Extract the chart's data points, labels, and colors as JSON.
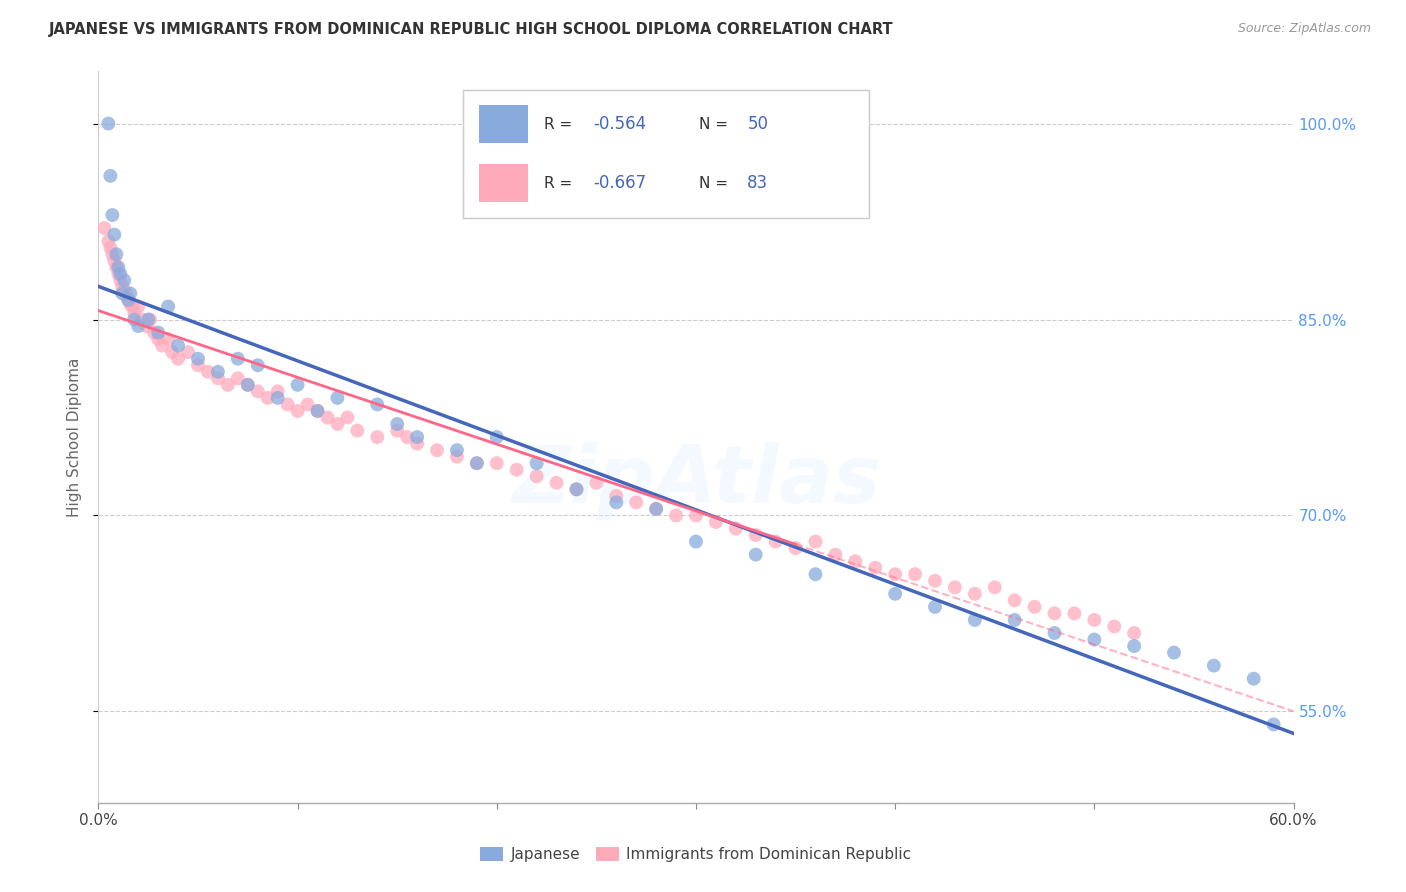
{
  "title": "JAPANESE VS IMMIGRANTS FROM DOMINICAN REPUBLIC HIGH SCHOOL DIPLOMA CORRELATION CHART",
  "source": "Source: ZipAtlas.com",
  "ylabel": "High School Diploma",
  "xlim": [
    0.0,
    60.0
  ],
  "ylim": [
    48.0,
    104.0
  ],
  "xticks": [
    0.0,
    10.0,
    20.0,
    30.0,
    40.0,
    50.0,
    60.0
  ],
  "ytick_positions": [
    55.0,
    70.0,
    85.0,
    100.0
  ],
  "ytick_labels": [
    "55.0%",
    "70.0%",
    "85.0%",
    "100.0%"
  ],
  "blue_color": "#88AADD",
  "pink_color": "#FFAABB",
  "blue_line_color": "#4466BB",
  "pink_line_color": "#FF6688",
  "blue_r": "-0.564",
  "blue_n": "50",
  "pink_r": "-0.667",
  "pink_n": "83",
  "japanese_x": [
    0.5,
    0.6,
    0.7,
    0.8,
    0.9,
    1.0,
    1.1,
    1.2,
    1.3,
    1.5,
    1.6,
    1.8,
    2.0,
    2.5,
    3.0,
    3.5,
    4.0,
    5.0,
    6.0,
    7.0,
    7.5,
    8.0,
    9.0,
    10.0,
    11.0,
    12.0,
    14.0,
    15.0,
    16.0,
    18.0,
    19.0,
    20.0,
    22.0,
    24.0,
    26.0,
    28.0,
    30.0,
    33.0,
    36.0,
    40.0,
    42.0,
    44.0,
    46.0,
    48.0,
    50.0,
    52.0,
    54.0,
    56.0,
    58.0,
    59.0
  ],
  "japanese_y": [
    100.0,
    96.0,
    93.0,
    91.5,
    90.0,
    89.0,
    88.5,
    87.0,
    88.0,
    86.5,
    87.0,
    85.0,
    84.5,
    85.0,
    84.0,
    86.0,
    83.0,
    82.0,
    81.0,
    82.0,
    80.0,
    81.5,
    79.0,
    80.0,
    78.0,
    79.0,
    78.5,
    77.0,
    76.0,
    75.0,
    74.0,
    76.0,
    74.0,
    72.0,
    71.0,
    70.5,
    68.0,
    67.0,
    65.5,
    64.0,
    63.0,
    62.0,
    62.0,
    61.0,
    60.5,
    60.0,
    59.5,
    58.5,
    57.5,
    54.0
  ],
  "dominican_x": [
    0.3,
    0.5,
    0.6,
    0.7,
    0.8,
    0.9,
    1.0,
    1.1,
    1.2,
    1.3,
    1.4,
    1.5,
    1.6,
    1.7,
    1.8,
    2.0,
    2.2,
    2.4,
    2.6,
    2.8,
    3.0,
    3.2,
    3.5,
    3.7,
    4.0,
    4.5,
    5.0,
    5.5,
    6.0,
    6.5,
    7.0,
    7.5,
    8.0,
    8.5,
    9.0,
    9.5,
    10.0,
    10.5,
    11.0,
    11.5,
    12.0,
    12.5,
    13.0,
    14.0,
    15.0,
    15.5,
    16.0,
    17.0,
    18.0,
    19.0,
    20.0,
    21.0,
    22.0,
    23.0,
    24.0,
    25.0,
    26.0,
    27.0,
    28.0,
    29.0,
    30.0,
    31.0,
    32.0,
    33.0,
    34.0,
    35.0,
    36.0,
    37.0,
    38.0,
    39.0,
    40.0,
    41.0,
    42.0,
    43.0,
    44.0,
    45.0,
    46.0,
    47.0,
    48.0,
    49.0,
    50.0,
    51.0,
    52.0
  ],
  "dominican_y": [
    92.0,
    91.0,
    90.5,
    90.0,
    89.5,
    89.0,
    88.5,
    88.0,
    87.5,
    87.2,
    87.0,
    86.5,
    86.2,
    86.0,
    85.5,
    86.0,
    85.0,
    84.5,
    85.0,
    84.0,
    83.5,
    83.0,
    83.5,
    82.5,
    82.0,
    82.5,
    81.5,
    81.0,
    80.5,
    80.0,
    80.5,
    80.0,
    79.5,
    79.0,
    79.5,
    78.5,
    78.0,
    78.5,
    78.0,
    77.5,
    77.0,
    77.5,
    76.5,
    76.0,
    76.5,
    76.0,
    75.5,
    75.0,
    74.5,
    74.0,
    74.0,
    73.5,
    73.0,
    72.5,
    72.0,
    72.5,
    71.5,
    71.0,
    70.5,
    70.0,
    70.0,
    69.5,
    69.0,
    68.5,
    68.0,
    67.5,
    68.0,
    67.0,
    66.5,
    66.0,
    65.5,
    65.5,
    65.0,
    64.5,
    64.0,
    64.5,
    63.5,
    63.0,
    62.5,
    62.5,
    62.0,
    61.5,
    61.0
  ],
  "dominican_solid_max_x": 35.0
}
